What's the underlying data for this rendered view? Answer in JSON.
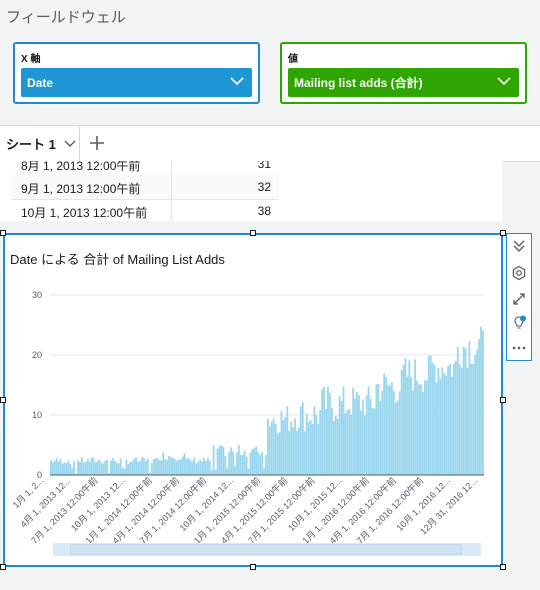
{
  "fieldwell": {
    "title": "フィールドウェル",
    "x_axis": {
      "label": "X 軸",
      "field": "Date"
    },
    "value": {
      "label": "値",
      "field": "Mailing list adds (合計)"
    }
  },
  "tabs": {
    "sheet_label": "シート 1"
  },
  "table": {
    "rows": [
      {
        "date": "8月 1, 2013 12:00午前",
        "value": "31"
      },
      {
        "date": "9月 1, 2013 12:00午前",
        "value": "32"
      },
      {
        "date": "10月 1, 2013 12:00午前",
        "value": "38"
      }
    ]
  },
  "chart_title": "Date による 合計 of Mailing List Adds",
  "colors": {
    "accent": "#1f8ad2",
    "value_green": "#2ea500",
    "bar": "#9bd7ee"
  },
  "chart_data": {
    "type": "bar",
    "title": "Date による 合計 of Mailing List Adds",
    "ylim": [
      0,
      30
    ],
    "yticks": [
      0,
      10,
      20,
      30
    ],
    "grid": true,
    "x_tick_labels": [
      "1月 1, 2...",
      "4月 1, 2013 12...",
      "7月 1, 2013 12:00午前",
      "10月 1, 2013 12...",
      "1月 1, 2014 12:00午前",
      "4月 1, 2014 12:00午前",
      "7月 1, 2014 12:00午前",
      "10月 1, 2014 12...",
      "1月 1, 2015 12:00午前",
      "4月 1, 2015 12:00午前",
      "7月 1, 2015 12:00午前",
      "10月 1, 2015 12...",
      "1月 1, 2016 12:00午前",
      "4月 1, 2016 12:00午前",
      "7月 1, 2016 12:00午前",
      "10月 1, 2016 12...",
      "12月 31, 2016 12..."
    ],
    "series": [
      {
        "name": "",
        "values_by_period": [
          {
            "period": "2013 Q1",
            "min": 0,
            "max": 3
          },
          {
            "period": "2013 Q2",
            "min": 0,
            "max": 3
          },
          {
            "period": "2013 Q3",
            "min": 0,
            "max": 3
          },
          {
            "period": "2013 Q4",
            "min": 0,
            "max": 3
          },
          {
            "period": "2014 Q1",
            "min": 0,
            "max": 4
          },
          {
            "period": "2014 Q2",
            "min": 0,
            "max": 3
          },
          {
            "period": "2014 Q3",
            "min": 0,
            "max": 5
          },
          {
            "period": "2014 Q4",
            "min": 0,
            "max": 5
          },
          {
            "period": "2015 Q1",
            "min": 4,
            "max": 12
          },
          {
            "period": "2015 Q2",
            "min": 4,
            "max": 13
          },
          {
            "period": "2015 Q3",
            "min": 5,
            "max": 15
          },
          {
            "period": "2015 Q4",
            "min": 6,
            "max": 15
          },
          {
            "period": "2016 Q1",
            "min": 8,
            "max": 18
          },
          {
            "period": "2016 Q2",
            "min": 10,
            "max": 20
          },
          {
            "period": "2016 Q3",
            "min": 12,
            "max": 21
          },
          {
            "period": "2016 Q4",
            "min": 14,
            "max": 25
          }
        ]
      }
    ]
  }
}
